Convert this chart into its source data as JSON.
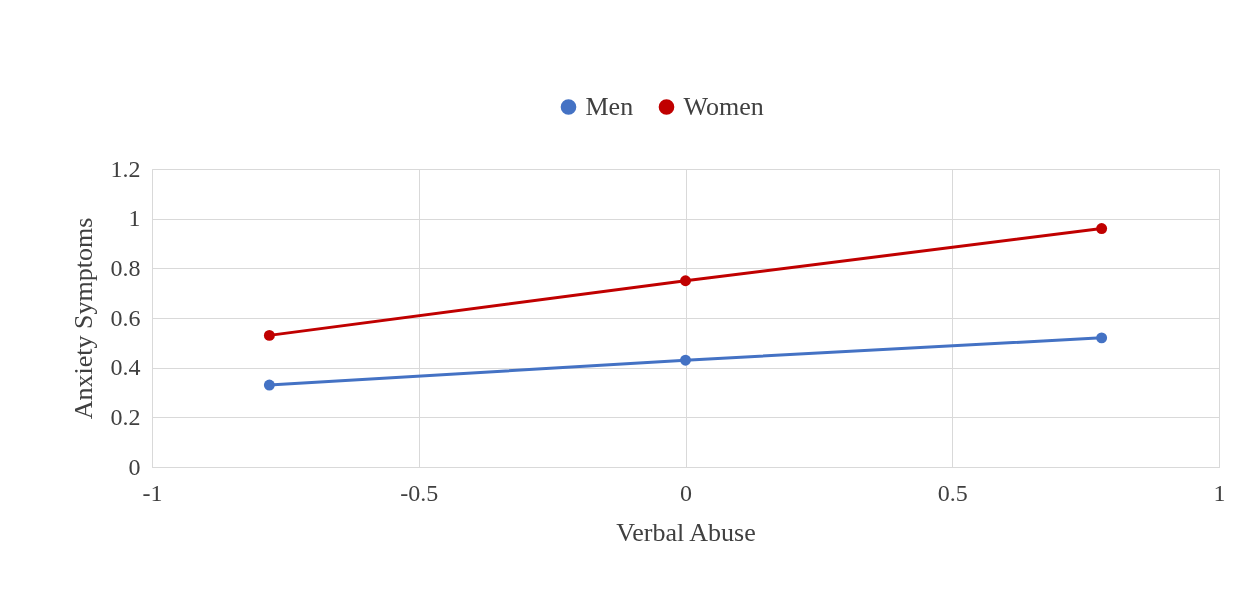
{
  "chart_data": {
    "type": "line",
    "xlabel": "Verbal Abuse",
    "ylabel": "Anxiety Symptoms",
    "x": [
      -0.78,
      0,
      0.78
    ],
    "series": [
      {
        "name": "Men",
        "color": "#4472c4",
        "values": [
          0.33,
          0.43,
          0.52
        ]
      },
      {
        "name": "Women",
        "color": "#c00000",
        "values": [
          0.53,
          0.75,
          0.96
        ]
      }
    ],
    "xlim": [
      -1,
      1
    ],
    "xticks": [
      -1,
      -0.5,
      0,
      0.5,
      1
    ],
    "ylim": [
      0,
      1.2
    ],
    "yticks": [
      0,
      0.2,
      0.4,
      0.6,
      0.8,
      1,
      1.2
    ],
    "grid": true,
    "legend": "top",
    "marker": "circle",
    "line_style": "solid"
  }
}
